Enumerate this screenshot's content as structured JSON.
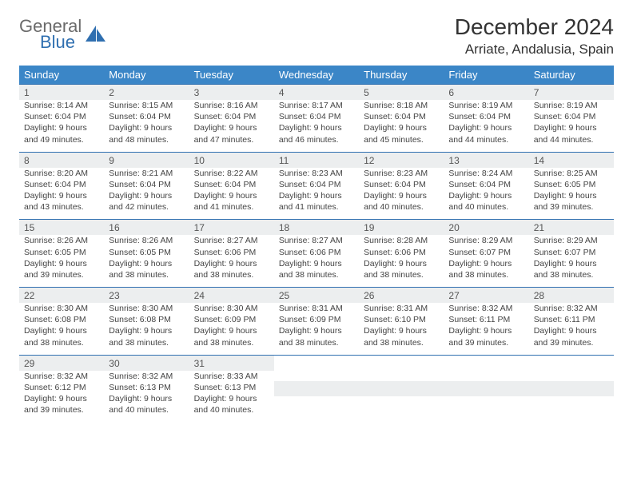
{
  "brand": {
    "top": "General",
    "bottom": "Blue",
    "icon_color": "#2f6fb0"
  },
  "title": "December 2024",
  "location": "Arriate, Andalusia, Spain",
  "header_bg": "#3b86c7",
  "daynum_bg": "#eceeef",
  "border_color": "#2f6fb0",
  "weekdays": [
    "Sunday",
    "Monday",
    "Tuesday",
    "Wednesday",
    "Thursday",
    "Friday",
    "Saturday"
  ],
  "weeks": [
    [
      {
        "n": "1",
        "sr": "Sunrise: 8:14 AM",
        "ss": "Sunset: 6:04 PM",
        "d1": "Daylight: 9 hours",
        "d2": "and 49 minutes."
      },
      {
        "n": "2",
        "sr": "Sunrise: 8:15 AM",
        "ss": "Sunset: 6:04 PM",
        "d1": "Daylight: 9 hours",
        "d2": "and 48 minutes."
      },
      {
        "n": "3",
        "sr": "Sunrise: 8:16 AM",
        "ss": "Sunset: 6:04 PM",
        "d1": "Daylight: 9 hours",
        "d2": "and 47 minutes."
      },
      {
        "n": "4",
        "sr": "Sunrise: 8:17 AM",
        "ss": "Sunset: 6:04 PM",
        "d1": "Daylight: 9 hours",
        "d2": "and 46 minutes."
      },
      {
        "n": "5",
        "sr": "Sunrise: 8:18 AM",
        "ss": "Sunset: 6:04 PM",
        "d1": "Daylight: 9 hours",
        "d2": "and 45 minutes."
      },
      {
        "n": "6",
        "sr": "Sunrise: 8:19 AM",
        "ss": "Sunset: 6:04 PM",
        "d1": "Daylight: 9 hours",
        "d2": "and 44 minutes."
      },
      {
        "n": "7",
        "sr": "Sunrise: 8:19 AM",
        "ss": "Sunset: 6:04 PM",
        "d1": "Daylight: 9 hours",
        "d2": "and 44 minutes."
      }
    ],
    [
      {
        "n": "8",
        "sr": "Sunrise: 8:20 AM",
        "ss": "Sunset: 6:04 PM",
        "d1": "Daylight: 9 hours",
        "d2": "and 43 minutes."
      },
      {
        "n": "9",
        "sr": "Sunrise: 8:21 AM",
        "ss": "Sunset: 6:04 PM",
        "d1": "Daylight: 9 hours",
        "d2": "and 42 minutes."
      },
      {
        "n": "10",
        "sr": "Sunrise: 8:22 AM",
        "ss": "Sunset: 6:04 PM",
        "d1": "Daylight: 9 hours",
        "d2": "and 41 minutes."
      },
      {
        "n": "11",
        "sr": "Sunrise: 8:23 AM",
        "ss": "Sunset: 6:04 PM",
        "d1": "Daylight: 9 hours",
        "d2": "and 41 minutes."
      },
      {
        "n": "12",
        "sr": "Sunrise: 8:23 AM",
        "ss": "Sunset: 6:04 PM",
        "d1": "Daylight: 9 hours",
        "d2": "and 40 minutes."
      },
      {
        "n": "13",
        "sr": "Sunrise: 8:24 AM",
        "ss": "Sunset: 6:04 PM",
        "d1": "Daylight: 9 hours",
        "d2": "and 40 minutes."
      },
      {
        "n": "14",
        "sr": "Sunrise: 8:25 AM",
        "ss": "Sunset: 6:05 PM",
        "d1": "Daylight: 9 hours",
        "d2": "and 39 minutes."
      }
    ],
    [
      {
        "n": "15",
        "sr": "Sunrise: 8:26 AM",
        "ss": "Sunset: 6:05 PM",
        "d1": "Daylight: 9 hours",
        "d2": "and 39 minutes."
      },
      {
        "n": "16",
        "sr": "Sunrise: 8:26 AM",
        "ss": "Sunset: 6:05 PM",
        "d1": "Daylight: 9 hours",
        "d2": "and 38 minutes."
      },
      {
        "n": "17",
        "sr": "Sunrise: 8:27 AM",
        "ss": "Sunset: 6:06 PM",
        "d1": "Daylight: 9 hours",
        "d2": "and 38 minutes."
      },
      {
        "n": "18",
        "sr": "Sunrise: 8:27 AM",
        "ss": "Sunset: 6:06 PM",
        "d1": "Daylight: 9 hours",
        "d2": "and 38 minutes."
      },
      {
        "n": "19",
        "sr": "Sunrise: 8:28 AM",
        "ss": "Sunset: 6:06 PM",
        "d1": "Daylight: 9 hours",
        "d2": "and 38 minutes."
      },
      {
        "n": "20",
        "sr": "Sunrise: 8:29 AM",
        "ss": "Sunset: 6:07 PM",
        "d1": "Daylight: 9 hours",
        "d2": "and 38 minutes."
      },
      {
        "n": "21",
        "sr": "Sunrise: 8:29 AM",
        "ss": "Sunset: 6:07 PM",
        "d1": "Daylight: 9 hours",
        "d2": "and 38 minutes."
      }
    ],
    [
      {
        "n": "22",
        "sr": "Sunrise: 8:30 AM",
        "ss": "Sunset: 6:08 PM",
        "d1": "Daylight: 9 hours",
        "d2": "and 38 minutes."
      },
      {
        "n": "23",
        "sr": "Sunrise: 8:30 AM",
        "ss": "Sunset: 6:08 PM",
        "d1": "Daylight: 9 hours",
        "d2": "and 38 minutes."
      },
      {
        "n": "24",
        "sr": "Sunrise: 8:30 AM",
        "ss": "Sunset: 6:09 PM",
        "d1": "Daylight: 9 hours",
        "d2": "and 38 minutes."
      },
      {
        "n": "25",
        "sr": "Sunrise: 8:31 AM",
        "ss": "Sunset: 6:09 PM",
        "d1": "Daylight: 9 hours",
        "d2": "and 38 minutes."
      },
      {
        "n": "26",
        "sr": "Sunrise: 8:31 AM",
        "ss": "Sunset: 6:10 PM",
        "d1": "Daylight: 9 hours",
        "d2": "and 38 minutes."
      },
      {
        "n": "27",
        "sr": "Sunrise: 8:32 AM",
        "ss": "Sunset: 6:11 PM",
        "d1": "Daylight: 9 hours",
        "d2": "and 39 minutes."
      },
      {
        "n": "28",
        "sr": "Sunrise: 8:32 AM",
        "ss": "Sunset: 6:11 PM",
        "d1": "Daylight: 9 hours",
        "d2": "and 39 minutes."
      }
    ],
    [
      {
        "n": "29",
        "sr": "Sunrise: 8:32 AM",
        "ss": "Sunset: 6:12 PM",
        "d1": "Daylight: 9 hours",
        "d2": "and 39 minutes."
      },
      {
        "n": "30",
        "sr": "Sunrise: 8:32 AM",
        "ss": "Sunset: 6:13 PM",
        "d1": "Daylight: 9 hours",
        "d2": "and 40 minutes."
      },
      {
        "n": "31",
        "sr": "Sunrise: 8:33 AM",
        "ss": "Sunset: 6:13 PM",
        "d1": "Daylight: 9 hours",
        "d2": "and 40 minutes."
      },
      null,
      null,
      null,
      null
    ]
  ]
}
